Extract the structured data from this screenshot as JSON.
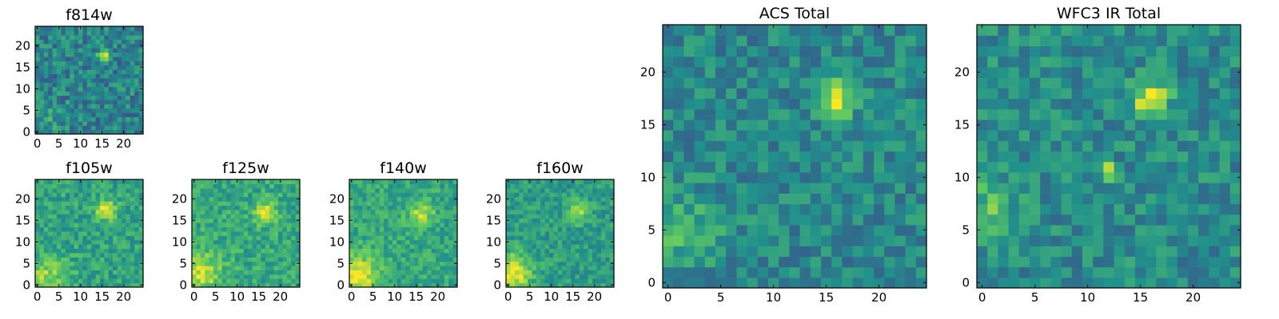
{
  "figure": {
    "grid_size": 25,
    "colormap": "viridis",
    "colormap_stops": [
      "#440154",
      "#3b528b",
      "#21918c",
      "#5ec962",
      "#fde725"
    ]
  },
  "chart_data": [
    {
      "type": "heatmap",
      "id": "f814w",
      "title": "f814w",
      "xlim": [
        0,
        24
      ],
      "ylim": [
        0,
        24
      ],
      "xticks": [
        0,
        5,
        10,
        15,
        20
      ],
      "yticks": [
        0,
        5,
        10,
        15,
        20
      ],
      "xtick_labels": [
        "0",
        "5",
        "10",
        "15",
        "20"
      ],
      "ytick_labels": [
        "0",
        "5",
        "10",
        "15",
        "20"
      ],
      "base_level": 0.44,
      "noise": 0.17,
      "seed": 11,
      "features": [
        {
          "x": 15.5,
          "y": 17.5,
          "peak": 0.55,
          "sigma": 1.1
        },
        {
          "x": 2,
          "y": 3,
          "peak": 0.12,
          "sigma": 3
        }
      ]
    },
    {
      "type": "heatmap",
      "id": "f105w",
      "title": "f105w",
      "xlim": [
        0,
        24
      ],
      "ylim": [
        0,
        24
      ],
      "xticks": [
        0,
        5,
        10,
        15,
        20
      ],
      "yticks": [
        0,
        5,
        10,
        15,
        20
      ],
      "xtick_labels": [
        "0",
        "5",
        "10",
        "15",
        "20"
      ],
      "ytick_labels": [
        "0",
        "5",
        "10",
        "15",
        "20"
      ],
      "base_level": 0.58,
      "noise": 0.13,
      "seed": 23,
      "features": [
        {
          "x": 16,
          "y": 17.5,
          "peak": 0.42,
          "sigma": 1.6
        },
        {
          "x": 2,
          "y": 2,
          "peak": 0.25,
          "sigma": 3.5
        }
      ]
    },
    {
      "type": "heatmap",
      "id": "f125w",
      "title": "f125w",
      "xlim": [
        0,
        24
      ],
      "ylim": [
        0,
        24
      ],
      "xticks": [
        0,
        5,
        10,
        15,
        20
      ],
      "yticks": [
        0,
        5,
        10,
        15,
        20
      ],
      "xtick_labels": [
        "0",
        "5",
        "10",
        "15",
        "20"
      ],
      "ytick_labels": [
        "0",
        "5",
        "10",
        "15",
        "20"
      ],
      "base_level": 0.6,
      "noise": 0.13,
      "seed": 37,
      "features": [
        {
          "x": 16.5,
          "y": 17,
          "peak": 0.35,
          "sigma": 1.8
        },
        {
          "x": 1.5,
          "y": 3,
          "peak": 0.3,
          "sigma": 3.5
        }
      ]
    },
    {
      "type": "heatmap",
      "id": "f140w",
      "title": "f140w",
      "xlim": [
        0,
        24
      ],
      "ylim": [
        0,
        24
      ],
      "xticks": [
        0,
        5,
        10,
        15,
        20
      ],
      "yticks": [
        0,
        5,
        10,
        15,
        20
      ],
      "xtick_labels": [
        "0",
        "5",
        "10",
        "15",
        "20"
      ],
      "ytick_labels": [
        "0",
        "5",
        "10",
        "15",
        "20"
      ],
      "base_level": 0.6,
      "noise": 0.12,
      "seed": 53,
      "features": [
        {
          "x": 16,
          "y": 16.5,
          "peak": 0.28,
          "sigma": 2
        },
        {
          "x": 1.5,
          "y": 2,
          "peak": 0.38,
          "sigma": 3.5
        }
      ]
    },
    {
      "type": "heatmap",
      "id": "f160w",
      "title": "f160w",
      "xlim": [
        0,
        24
      ],
      "ylim": [
        0,
        24
      ],
      "xticks": [
        0,
        5,
        10,
        15,
        20
      ],
      "yticks": [
        0,
        5,
        10,
        15,
        20
      ],
      "xtick_labels": [
        "0",
        "5",
        "10",
        "15",
        "20"
      ],
      "ytick_labels": [
        "0",
        "5",
        "10",
        "15",
        "20"
      ],
      "base_level": 0.55,
      "noise": 0.12,
      "seed": 71,
      "features": [
        {
          "x": 16,
          "y": 17,
          "peak": 0.3,
          "sigma": 1.8
        },
        {
          "x": 1,
          "y": 3,
          "peak": 0.45,
          "sigma": 3
        }
      ]
    },
    {
      "type": "heatmap",
      "id": "acs-total",
      "title": "ACS Total",
      "xlim": [
        0,
        24
      ],
      "ylim": [
        0,
        24
      ],
      "xticks": [
        0,
        5,
        10,
        15,
        20
      ],
      "yticks": [
        0,
        5,
        10,
        15,
        20
      ],
      "xtick_labels": [
        "0",
        "5",
        "10",
        "15",
        "20"
      ],
      "ytick_labels": [
        "0",
        "5",
        "10",
        "15",
        "20"
      ],
      "base_level": 0.46,
      "noise": 0.14,
      "seed": 97,
      "features": [
        {
          "x": 16,
          "y": 17.5,
          "peak": 0.55,
          "sigma": 1.2
        },
        {
          "x": 1.5,
          "y": 5,
          "peak": 0.2,
          "sigma": 2.5
        }
      ]
    },
    {
      "type": "heatmap",
      "id": "wfc3-ir-total",
      "title": "WFC3 IR Total",
      "xlim": [
        0,
        24
      ],
      "ylim": [
        0,
        24
      ],
      "xticks": [
        0,
        5,
        10,
        15,
        20
      ],
      "yticks": [
        0,
        5,
        10,
        15,
        20
      ],
      "xtick_labels": [
        "0",
        "5",
        "10",
        "15",
        "20"
      ],
      "ytick_labels": [
        "0",
        "5",
        "10",
        "15",
        "20"
      ],
      "base_level": 0.48,
      "noise": 0.14,
      "seed": 131,
      "features": [
        {
          "x": 16,
          "y": 17.5,
          "peak": 0.5,
          "sigma": 1.2
        },
        {
          "x": 12,
          "y": 10.5,
          "peak": 0.4,
          "sigma": 0.6
        },
        {
          "x": 0.5,
          "y": 7,
          "peak": 0.22,
          "sigma": 2
        }
      ]
    }
  ]
}
